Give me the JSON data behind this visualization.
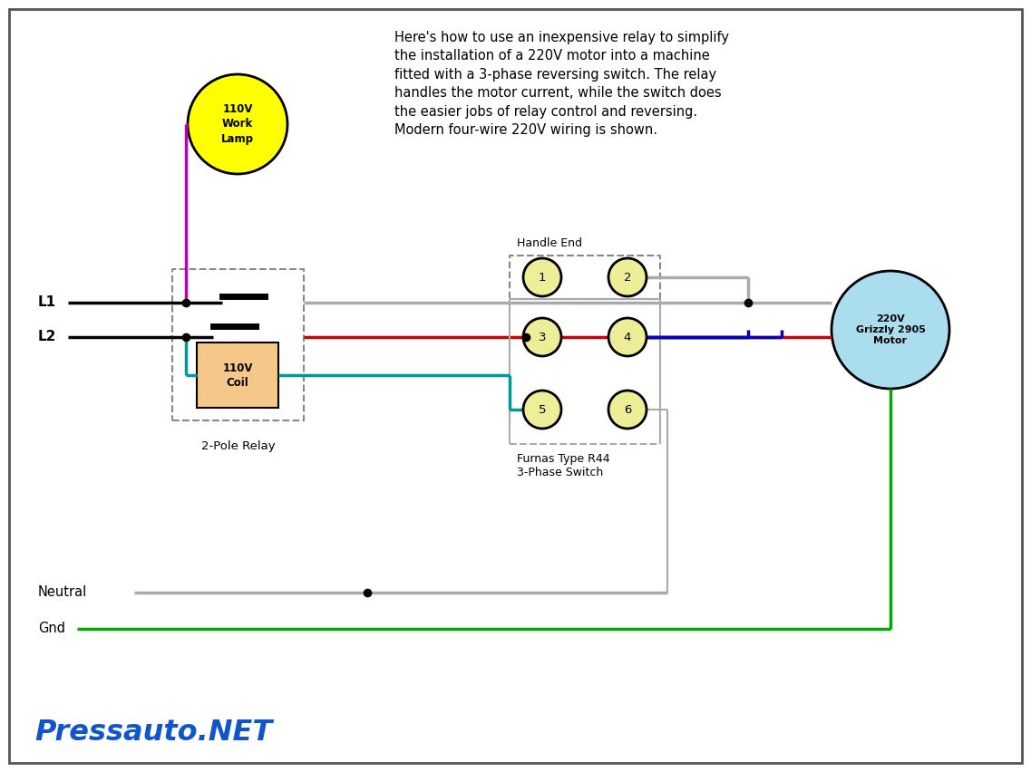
{
  "description_text": "Here's how to use an inexpensive relay to simplify\nthe installation of a 220V motor into a machine\nfitted with a 3-phase reversing switch. The relay\nhandles the motor current, while the switch does\nthe easier jobs of relay control and reversing.\nModern four-wire 220V wiring is shown.",
  "watermark": "Pressauto.NET",
  "bg_color": "#ffffff",
  "border_color": "#555555",
  "lamp_color": "#ffff00",
  "lamp_text": "110V\nWork\nLamp",
  "motor_color": "#aaddee",
  "motor_text": "220V\nGrizzly 2905\nMotor",
  "coil_color": "#f5c88a",
  "coil_text": "110V\nCoil",
  "relay_label": "2-Pole Relay",
  "switch_label": "Furnas Type R44\n3-Phase Switch",
  "handle_end_label": "Handle End",
  "terminal_color": "#eeee99",
  "black": "#000000",
  "gray": "#aaaaaa",
  "red": "#cc0000",
  "blue": "#0000bb",
  "green": "#00aa00",
  "teal": "#009999",
  "magenta": "#bb00bb",
  "dot": "#000000"
}
